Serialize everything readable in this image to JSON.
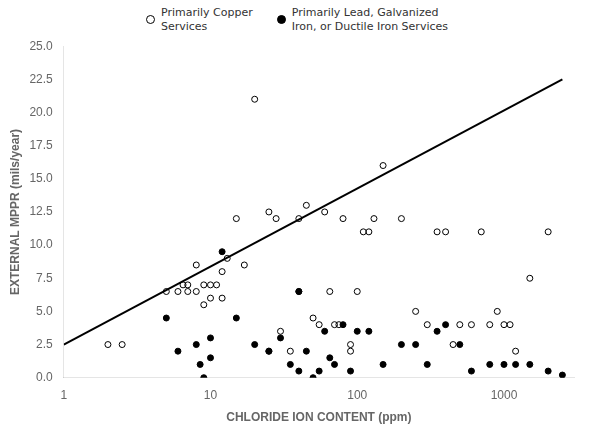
{
  "chart_data": {
    "type": "scatter",
    "xlabel": "CHLORIDE ION CONTENT (ppm)",
    "ylabel": "EXTERNAL MPPR (mils/year)",
    "log": "x",
    "grid": false,
    "legend": "top",
    "xlim": [
      1,
      3000
    ],
    "xticks": [
      1,
      10,
      100,
      1000
    ],
    "ylim": [
      0,
      25
    ],
    "yticks": [
      {
        "value": 0,
        "label": "0.0"
      },
      2.5,
      {
        "value": 5,
        "label": "5.0"
      },
      7.5,
      {
        "value": 10,
        "label": "10.0"
      },
      12.5,
      {
        "value": 15,
        "label": "15.0"
      },
      17.5,
      {
        "value": 20,
        "label": "20.0"
      },
      22.5,
      {
        "value": 25,
        "label": "25.0"
      }
    ],
    "series": [
      {
        "type": "line",
        "color": "#000000",
        "x": [
          1,
          2500
        ],
        "values": [
          2.5,
          22.5
        ]
      },
      {
        "name": "Primarily Copper\nServices",
        "type": "scatter",
        "marker": "open circle",
        "color": "#000000",
        "x": [
          2,
          2.5,
          5,
          6,
          6.5,
          7,
          7,
          8,
          8,
          9,
          9,
          10,
          10,
          11,
          12,
          12,
          13,
          15,
          17,
          20,
          25,
          25,
          28,
          30,
          35,
          40,
          40,
          45,
          50,
          55,
          60,
          65,
          70,
          75,
          80,
          90,
          90,
          100,
          110,
          120,
          130,
          150,
          200,
          250,
          300,
          350,
          400,
          450,
          500,
          600,
          700,
          800,
          900,
          1000,
          1100,
          1200,
          1500,
          2000
        ],
        "values": [
          2.5,
          2.5,
          6.5,
          6.5,
          7,
          6.5,
          7,
          8.5,
          6.5,
          7,
          5.5,
          7,
          6,
          7,
          6,
          8,
          9,
          12,
          8.5,
          21,
          12.5,
          2,
          12,
          3.5,
          2,
          12,
          6.5,
          13,
          4.5,
          4,
          12.5,
          6.5,
          4,
          4,
          12,
          2.5,
          2,
          6.5,
          11,
          11,
          12,
          16,
          12,
          5,
          4,
          11,
          11,
          2.5,
          4,
          4,
          11,
          4,
          5,
          4,
          4,
          2,
          7.5,
          11
        ]
      },
      {
        "name": "Primarily Lead, Galvanized\nIron, or Ductile Iron Services",
        "type": "scatter",
        "marker": "filled circle",
        "color": "#000000",
        "x": [
          5,
          6,
          8,
          8.5,
          9,
          10,
          10,
          12,
          15,
          20,
          25,
          30,
          35,
          40,
          40,
          45,
          50,
          55,
          60,
          65,
          70,
          80,
          90,
          100,
          120,
          150,
          200,
          250,
          300,
          350,
          400,
          500,
          600,
          800,
          1000,
          1200,
          1500,
          2000,
          2500
        ],
        "values": [
          4.5,
          2,
          2.5,
          1,
          0,
          3,
          1.5,
          9.5,
          4.5,
          2.5,
          2,
          3,
          1,
          6.5,
          0.5,
          2,
          0,
          0.5,
          3.5,
          1.5,
          1,
          4,
          0.5,
          3.5,
          3.5,
          1,
          2.5,
          2.5,
          1,
          3.5,
          4,
          2.5,
          0.5,
          1,
          1,
          1,
          1,
          0.5,
          0.2
        ]
      }
    ]
  }
}
